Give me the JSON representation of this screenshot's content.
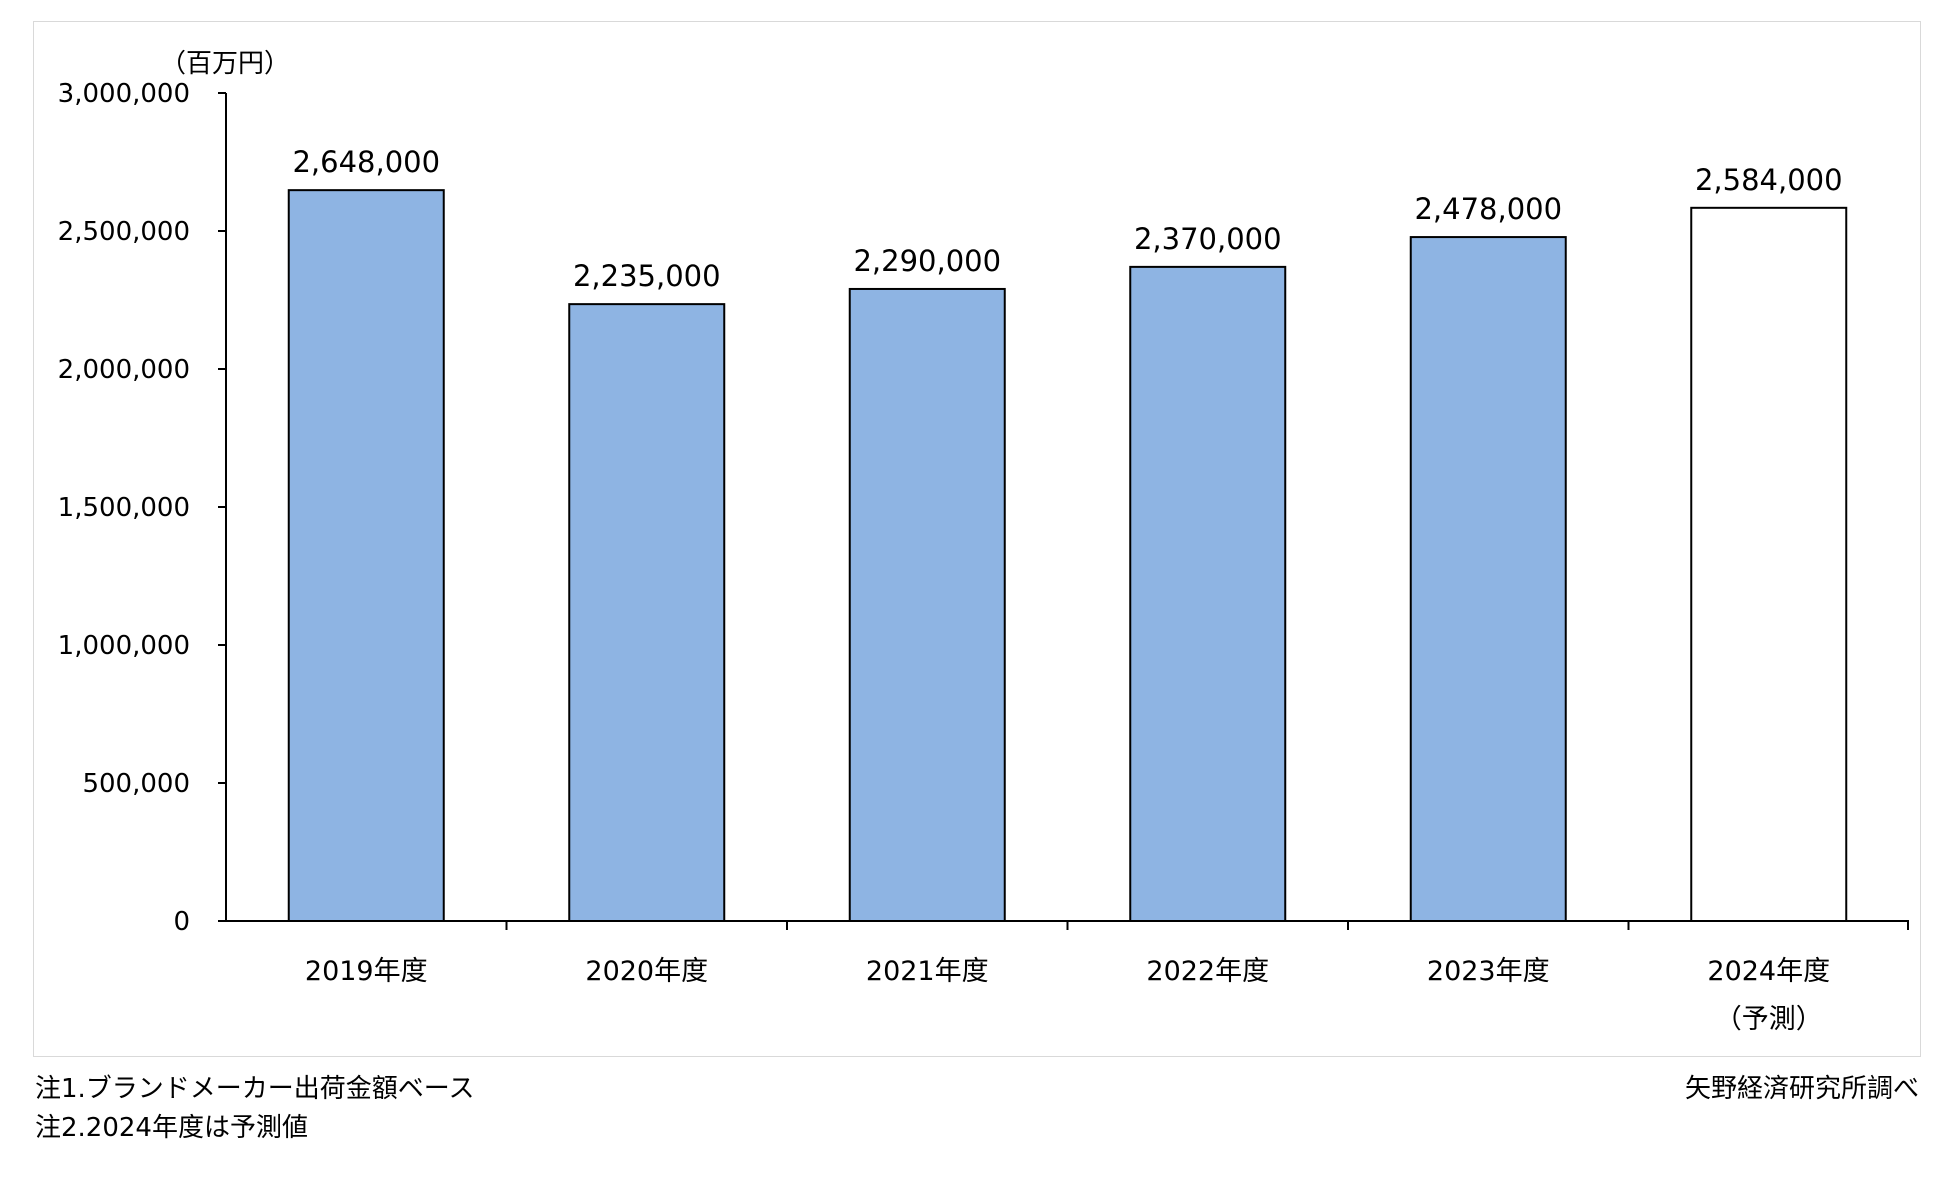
{
  "chart_data": {
    "type": "bar",
    "unit_label": "（百万円）",
    "categories": [
      "2019年度",
      "2020年度",
      "2021年度",
      "2022年度",
      "2023年度",
      "2024年度"
    ],
    "category_sublabels": [
      "",
      "",
      "",
      "",
      "",
      "（予測）"
    ],
    "values": [
      2648000,
      2235000,
      2290000,
      2370000,
      2478000,
      2584000
    ],
    "value_labels": [
      "2,648,000",
      "2,235,000",
      "2,290,000",
      "2,370,000",
      "2,478,000",
      "2,584,000"
    ],
    "forecast_index": 5,
    "ylim": [
      0,
      3000000
    ],
    "yticks": [
      0,
      500000,
      1000000,
      1500000,
      2000000,
      2500000,
      3000000
    ],
    "ytick_labels": [
      "0",
      "500,000",
      "1,000,000",
      "1,500,000",
      "2,000,000",
      "2,500,000",
      "3,000,000"
    ],
    "grid": false,
    "colors": {
      "bar_fill": "#8eb4e3",
      "forecast_fill": "#ffffff",
      "bar_stroke": "#000000"
    }
  },
  "notes": {
    "note1": "注1.ブランドメーカー出荷金額ベース",
    "note2": "注2.2024年度は予測値",
    "source": "矢野経済研究所調べ"
  }
}
